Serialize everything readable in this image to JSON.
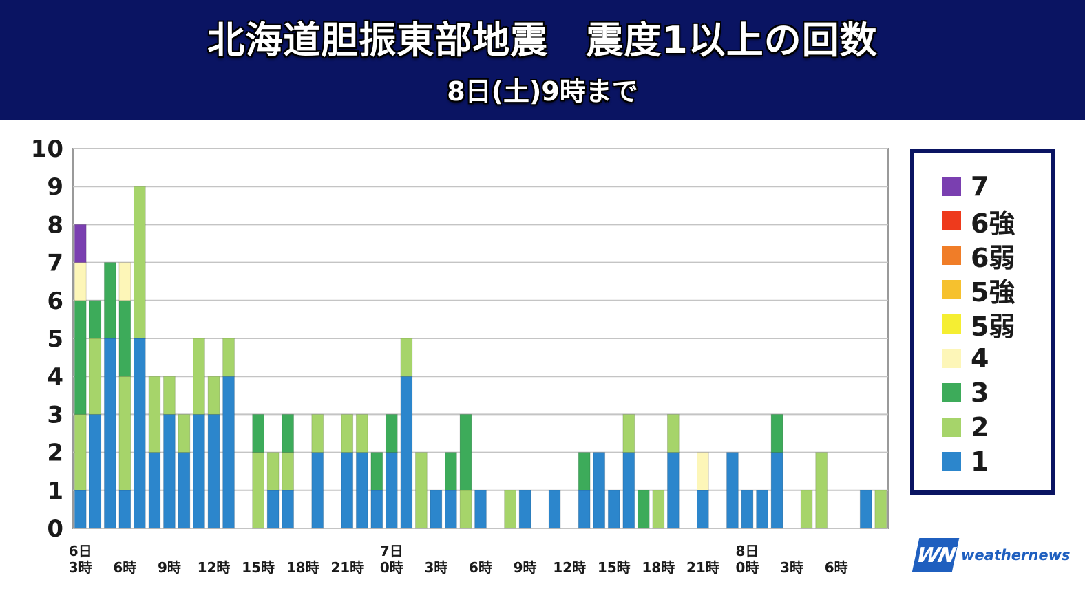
{
  "header": {
    "title": "北海道胆振東部地震　震度1以上の回数",
    "subtitle": "8日(土)9時まで"
  },
  "logo": {
    "mark": "WN",
    "text": "weathernews"
  },
  "colors": {
    "header_bg": "#0a1462",
    "legend_border": "#0a1462",
    "intensity": {
      "7": "#7a3fb0",
      "6強": "#ee3a1c",
      "6弱": "#f07d28",
      "5強": "#f6c12e",
      "5弱": "#f5ee32",
      "4": "#fdf6b8",
      "3": "#3dab5a",
      "2": "#a6d46a",
      "1": "#2c86cc"
    }
  },
  "legend": [
    {
      "label": "7",
      "key": "7"
    },
    {
      "label": "6強",
      "key": "6強"
    },
    {
      "label": "6弱",
      "key": "6弱"
    },
    {
      "label": "5強",
      "key": "5強"
    },
    {
      "label": "5弱",
      "key": "5弱"
    },
    {
      "label": "4",
      "key": "4"
    },
    {
      "label": "3",
      "key": "3"
    },
    {
      "label": "2",
      "key": "2"
    },
    {
      "label": "1",
      "key": "1"
    }
  ],
  "chart_data": {
    "type": "bar",
    "stacked": true,
    "title": "北海道胆振東部地震　震度1以上の回数",
    "subtitle": "8日(土)9時まで",
    "xlabel": "",
    "ylabel": "",
    "ylim": [
      0,
      10
    ],
    "yticks": [
      0,
      1,
      2,
      3,
      4,
      5,
      6,
      7,
      8,
      9,
      10
    ],
    "grid": true,
    "legend_position": "right",
    "categories": [
      "6日3時",
      "6日4時",
      "6日5時",
      "6日6時",
      "6日7時",
      "6日8時",
      "6日9時",
      "6日10時",
      "6日11時",
      "6日12時",
      "6日13時",
      "6日14時",
      "6日15時",
      "6日16時",
      "6日17時",
      "6日18時",
      "6日19時",
      "6日20時",
      "6日21時",
      "6日22時",
      "6日23時",
      "7日0時",
      "7日1時",
      "7日2時",
      "7日3時",
      "7日4時",
      "7日5時",
      "7日6時",
      "7日7時",
      "7日8時",
      "7日9時",
      "7日10時",
      "7日11时",
      "7日12時",
      "7日13時",
      "7日14時",
      "7日15時",
      "7日16時",
      "7日17時",
      "7日18時",
      "7日19時",
      "7日20時",
      "7日21時",
      "7日22時",
      "7日23時",
      "8日0時",
      "8日1時",
      "8日2時",
      "8日3時",
      "8日4時",
      "8日5時",
      "8日6時",
      "8日7時",
      "8日8時",
      "8日9時"
    ],
    "x_tick_labels": [
      {
        "line1": "6日",
        "line2": "3時",
        "index": 0
      },
      {
        "line1": "",
        "line2": "6時",
        "index": 3
      },
      {
        "line1": "",
        "line2": "9時",
        "index": 6
      },
      {
        "line1": "",
        "line2": "12時",
        "index": 9
      },
      {
        "line1": "",
        "line2": "15時",
        "index": 12
      },
      {
        "line1": "",
        "line2": "18時",
        "index": 15
      },
      {
        "line1": "",
        "line2": "21時",
        "index": 18
      },
      {
        "line1": "7日",
        "line2": "0時",
        "index": 21
      },
      {
        "line1": "",
        "line2": "3時",
        "index": 24
      },
      {
        "line1": "",
        "line2": "6時",
        "index": 27
      },
      {
        "line1": "",
        "line2": "9時",
        "index": 30
      },
      {
        "line1": "",
        "line2": "12時",
        "index": 33
      },
      {
        "line1": "",
        "line2": "15時",
        "index": 36
      },
      {
        "line1": "",
        "line2": "18時",
        "index": 39
      },
      {
        "line1": "",
        "line2": "21時",
        "index": 42
      },
      {
        "line1": "8日",
        "line2": "0時",
        "index": 45
      },
      {
        "line1": "",
        "line2": "3時",
        "index": 48
      },
      {
        "line1": "",
        "line2": "6時",
        "index": 51
      }
    ],
    "series": [
      {
        "name": "1",
        "color": "#2c86cc",
        "values": [
          1,
          3,
          5,
          1,
          5,
          2,
          3,
          2,
          3,
          3,
          4,
          0,
          0,
          1,
          1,
          0,
          2,
          0,
          2,
          2,
          1,
          2,
          4,
          0,
          1,
          1,
          0,
          1,
          0,
          0,
          1,
          0,
          1,
          0,
          1,
          2,
          1,
          2,
          0,
          0,
          2,
          0,
          1,
          0,
          2,
          1,
          1,
          2,
          0,
          0,
          0,
          0,
          0,
          1,
          0
        ]
      },
      {
        "name": "2",
        "color": "#a6d46a",
        "values": [
          2,
          2,
          0,
          3,
          4,
          2,
          1,
          1,
          2,
          1,
          1,
          0,
          2,
          1,
          1,
          0,
          1,
          0,
          1,
          1,
          0,
          0,
          1,
          2,
          0,
          0,
          1,
          0,
          0,
          1,
          0,
          0,
          0,
          0,
          0,
          0,
          0,
          1,
          0,
          1,
          1,
          0,
          0,
          0,
          0,
          0,
          0,
          0,
          0,
          1,
          2,
          0,
          0,
          0,
          1
        ]
      },
      {
        "name": "3",
        "color": "#3dab5a",
        "values": [
          3,
          1,
          2,
          2,
          0,
          0,
          0,
          0,
          0,
          0,
          0,
          0,
          1,
          0,
          1,
          0,
          0,
          0,
          0,
          0,
          1,
          1,
          0,
          0,
          0,
          1,
          2,
          0,
          0,
          0,
          0,
          0,
          0,
          0,
          1,
          0,
          0,
          0,
          1,
          0,
          0,
          0,
          0,
          0,
          0,
          0,
          0,
          1,
          0,
          0,
          0,
          0,
          0,
          0,
          0
        ]
      },
      {
        "name": "4",
        "color": "#fdf6b8",
        "values": [
          1,
          0,
          0,
          1,
          0,
          0,
          0,
          0,
          0,
          0,
          0,
          0,
          0,
          0,
          0,
          0,
          0,
          0,
          0,
          0,
          0,
          0,
          0,
          0,
          0,
          0,
          0,
          0,
          0,
          0,
          0,
          0,
          0,
          0,
          0,
          0,
          0,
          0,
          0,
          0,
          0,
          0,
          1,
          0,
          0,
          0,
          0,
          0,
          0,
          0,
          0,
          0,
          0,
          0,
          0
        ]
      },
      {
        "name": "7",
        "color": "#7a3fb0",
        "values": [
          1,
          0,
          0,
          0,
          0,
          0,
          0,
          0,
          0,
          0,
          0,
          0,
          0,
          0,
          0,
          0,
          0,
          0,
          0,
          0,
          0,
          0,
          0,
          0,
          0,
          0,
          0,
          0,
          0,
          0,
          0,
          0,
          0,
          0,
          0,
          0,
          0,
          0,
          0,
          0,
          0,
          0,
          0,
          0,
          0,
          0,
          0,
          0,
          0,
          0,
          0,
          0,
          0,
          0,
          0
        ]
      }
    ]
  }
}
